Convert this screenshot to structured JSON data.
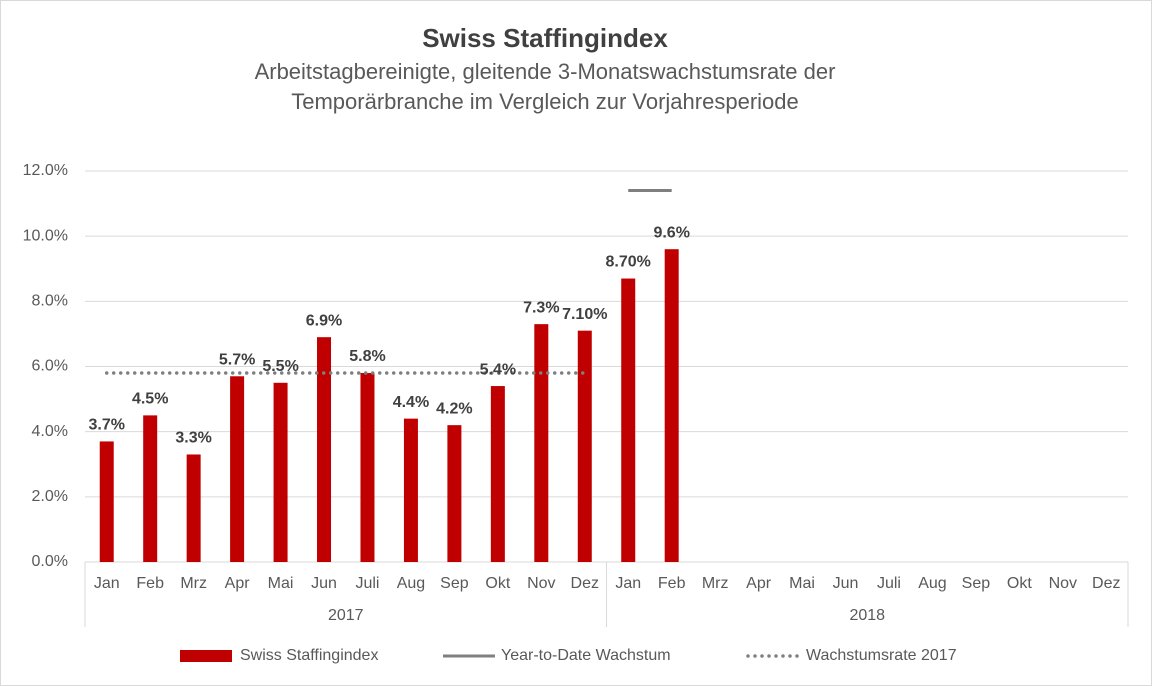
{
  "chart_data": {
    "type": "bar",
    "title": "Swiss Staffingindex",
    "subtitle": [
      "Arbeitstagbereinigte, gleitende 3-Monatswachstumsrate der",
      "Temporärbranche im Vergleich zur Vorjahresperiode"
    ],
    "groups": [
      {
        "name": "2017",
        "categories": [
          "Jan",
          "Feb",
          "Mrz",
          "Apr",
          "Mai",
          "Jun",
          "Juli",
          "Aug",
          "Sep",
          "Okt",
          "Nov",
          "Dez"
        ]
      },
      {
        "name": "2018",
        "categories": [
          "Jan",
          "Feb",
          "Mrz",
          "Apr",
          "Mai",
          "Jun",
          "Juli",
          "Aug",
          "Sep",
          "Okt",
          "Nov",
          "Dez"
        ]
      }
    ],
    "series": [
      {
        "name": "Swiss Staffingindex",
        "type": "bar",
        "color": "#c00000",
        "values": [
          3.7,
          4.5,
          3.3,
          5.7,
          5.5,
          6.9,
          5.8,
          4.4,
          4.2,
          5.4,
          7.3,
          7.1,
          8.7,
          9.6,
          null,
          null,
          null,
          null,
          null,
          null,
          null,
          null,
          null,
          null
        ],
        "value_labels": [
          "3.7%",
          "4.5%",
          "3.3%",
          "5.7%",
          "5.5%",
          "6.9%",
          "5.8%",
          "4.4%",
          "4.2%",
          "5.4%",
          "7.3%",
          "7.10%",
          "8.70%",
          "9.6%",
          null,
          null,
          null,
          null,
          null,
          null,
          null,
          null,
          null,
          null
        ]
      },
      {
        "name": "Year-to-Date Wachstum",
        "type": "line",
        "line_style": "solid",
        "color": "#7f7f7f",
        "values": [
          null,
          null,
          null,
          null,
          null,
          null,
          null,
          null,
          null,
          null,
          null,
          null,
          11.4,
          11.4,
          null,
          null,
          null,
          null,
          null,
          null,
          null,
          null,
          null,
          null
        ]
      },
      {
        "name": "Wachstumsrate 2017",
        "type": "line",
        "line_style": "dotted",
        "color": "#7f7f7f",
        "values": [
          5.8,
          5.8,
          5.8,
          5.8,
          5.8,
          5.8,
          5.8,
          5.8,
          5.8,
          5.8,
          5.8,
          5.8,
          null,
          null,
          null,
          null,
          null,
          null,
          null,
          null,
          null,
          null,
          null,
          null
        ]
      }
    ],
    "ylim": [
      0,
      12
    ],
    "yticks": [
      {
        "value": 0,
        "label": "0.0%"
      },
      {
        "value": 2,
        "label": "2.0%"
      },
      {
        "value": 4,
        "label": "4.0%"
      },
      {
        "value": 6,
        "label": "6.0%"
      },
      {
        "value": 8,
        "label": "8.0%"
      },
      {
        "value": 10,
        "label": "10.0%"
      },
      {
        "value": 12,
        "label": "12.0%"
      }
    ],
    "grid": true,
    "legend": "bottom"
  }
}
